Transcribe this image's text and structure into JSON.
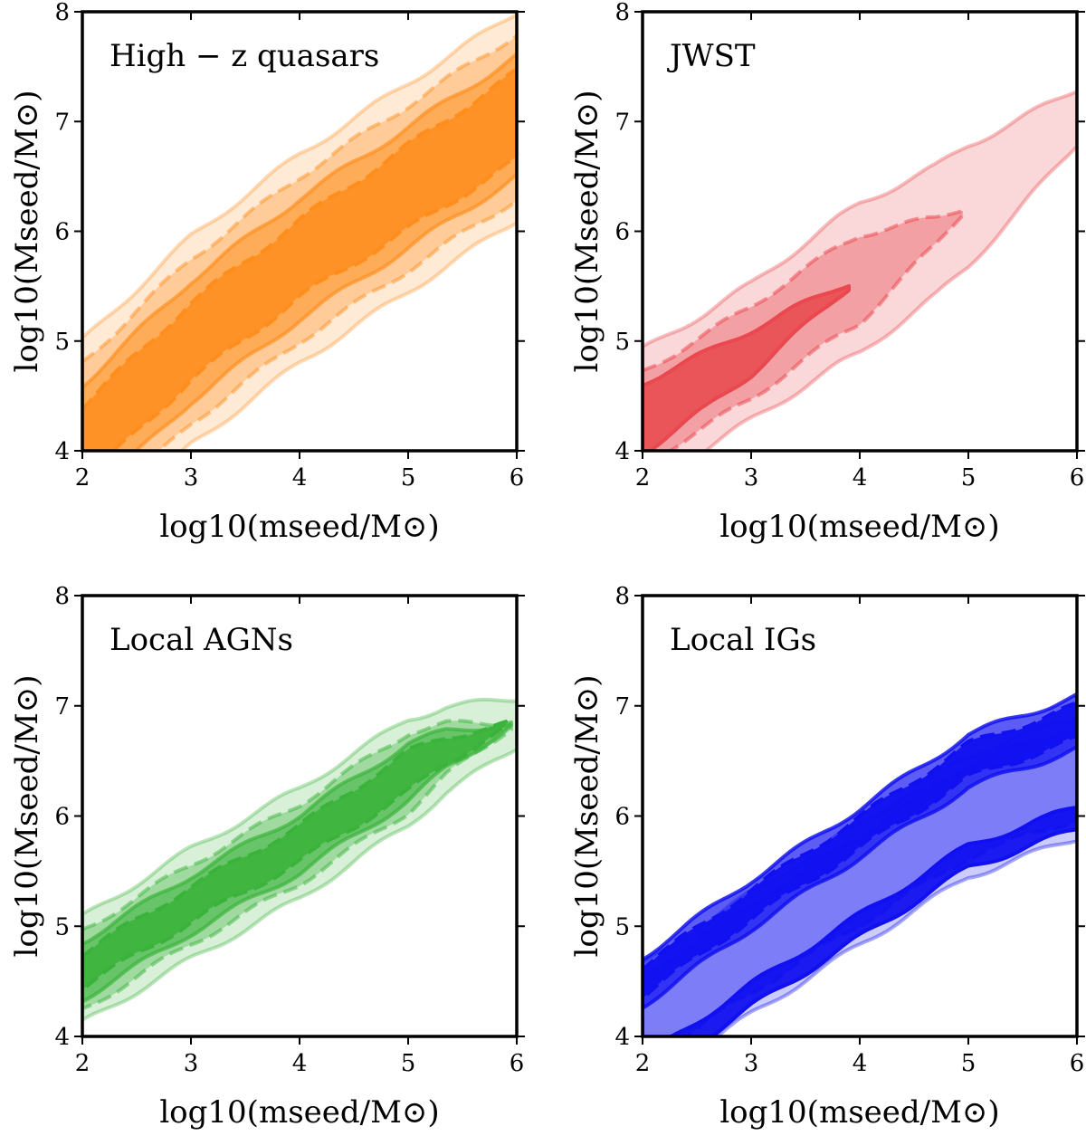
{
  "chart_data": [
    {
      "type": "contour",
      "label": "High − z quasars",
      "color": "#ff8c1a",
      "xlabel": "log10(mseed/M⊙)",
      "ylabel": "log10(Mseed/M⊙)",
      "xlim": [
        2,
        6
      ],
      "ylim": [
        4,
        8
      ],
      "xticks": [
        "2",
        "3",
        "4",
        "5",
        "6"
      ],
      "yticks": [
        "4",
        "5",
        "6",
        "7",
        "8"
      ],
      "levels": [
        {
          "opacity": 0.18,
          "halfwidth": [
            0.95,
            0.95,
            0.95,
            0.95,
            0.95
          ],
          "offset": [
            0,
            0,
            0,
            0,
            0
          ]
        },
        {
          "opacity": 0.32,
          "halfwidth": [
            0.75,
            0.75,
            0.75,
            0.75,
            0.75
          ],
          "offset": [
            0,
            0,
            0,
            0,
            0
          ]
        },
        {
          "opacity": 0.5,
          "halfwidth": [
            0.55,
            0.55,
            0.55,
            0.55,
            0.55
          ],
          "offset": [
            0,
            0,
            0,
            0,
            0
          ]
        },
        {
          "opacity": 0.8,
          "halfwidth": [
            0.35,
            0.35,
            0.35,
            0.38,
            0.4
          ],
          "offset": [
            0,
            0,
            0,
            0,
            0
          ]
        }
      ],
      "ridge": {
        "x": [
          2.0,
          3.0,
          4.0,
          5.0,
          6.0
        ],
        "y": [
          4.05,
          5.0,
          5.75,
          6.4,
          7.05
        ]
      }
    },
    {
      "type": "contour",
      "label": "JWST",
      "color": "#e8484e",
      "xlabel": "log10(mseed/M⊙)",
      "ylabel": "log10(Mseed/M⊙)",
      "xlim": [
        2,
        6
      ],
      "ylim": [
        4,
        8
      ],
      "xticks": [
        "2",
        "3",
        "4",
        "5",
        "6"
      ],
      "yticks": [
        "4",
        "5",
        "6",
        "7",
        "8"
      ],
      "levels": [
        {
          "opacity": 0.22,
          "halfwidth": [
            0.62,
            0.62,
            0.68,
            0.55,
            0.25
          ],
          "offset": [
            0,
            0,
            0,
            0,
            0
          ]
        },
        {
          "opacity": 0.38,
          "halfwidth": [
            0.42,
            0.42,
            0.4,
            0,
            0
          ],
          "offset": [
            0,
            0,
            0,
            0,
            0
          ]
        },
        {
          "opacity": 0.85,
          "halfwidth": [
            0.32,
            0.2,
            0,
            0,
            0
          ],
          "offset": [
            0,
            0,
            0,
            0,
            0
          ]
        }
      ],
      "ridge": {
        "x": [
          2.0,
          2.6,
          3.0,
          3.8,
          4.7,
          5.4,
          6.0
        ],
        "y": [
          4.3,
          4.65,
          4.9,
          5.45,
          6.0,
          6.55,
          7.05
        ]
      }
    },
    {
      "type": "contour",
      "label": "Local AGNs",
      "color": "#3ab33a",
      "xlabel": "log10(mseed/M⊙)",
      "ylabel": "log10(Mseed/M⊙)",
      "xlim": [
        2,
        6
      ],
      "ylim": [
        4,
        8
      ],
      "xticks": [
        "2",
        "3",
        "4",
        "5",
        "6"
      ],
      "yticks": [
        "4",
        "5",
        "6",
        "7",
        "8"
      ],
      "levels": [
        {
          "opacity": 0.2,
          "halfwidth": [
            0.48,
            0.5,
            0.5,
            0.48,
            0.22
          ],
          "offset": [
            0,
            0,
            0,
            0,
            0
          ]
        },
        {
          "opacity": 0.35,
          "halfwidth": [
            0.36,
            0.36,
            0.36,
            0.36,
            0
          ],
          "offset": [
            0,
            0,
            0,
            0,
            0
          ]
        },
        {
          "opacity": 0.55,
          "halfwidth": [
            0.26,
            0.26,
            0.26,
            0.26,
            0
          ],
          "offset": [
            0,
            0,
            0,
            0,
            0
          ]
        },
        {
          "opacity": 0.85,
          "halfwidth": [
            0.15,
            0.16,
            0.16,
            0.18,
            0
          ],
          "offset": [
            0,
            0,
            0,
            0,
            0
          ]
        }
      ],
      "ridge": {
        "x": [
          2.0,
          3.0,
          4.0,
          5.0,
          5.35,
          6.0
        ],
        "y": [
          4.6,
          5.2,
          5.75,
          6.4,
          6.6,
          6.85
        ]
      }
    },
    {
      "type": "contour",
      "label": "Local IGs",
      "color": "#1010f0",
      "xlabel": "log10(mseed/M⊙)",
      "ylabel": "log10(Mseed/M⊙)",
      "xlim": [
        2,
        6
      ],
      "ylim": [
        4,
        8
      ],
      "xticks": [
        "2",
        "3",
        "4",
        "5",
        "6"
      ],
      "yticks": [
        "4",
        "5",
        "6",
        "7",
        "8"
      ],
      "levels": [
        {
          "opacity": 0.22,
          "halfwidth": [
            0.55,
            0.55,
            0.55,
            0.55,
            0.55
          ],
          "offset": [
            -0.35,
            -0.4,
            -0.42,
            -0.45,
            -0.45
          ]
        },
        {
          "opacity": 0.42,
          "halfwidth": [
            0.4,
            0.4,
            0.4,
            0.42,
            0.42
          ],
          "offset": [
            -0.3,
            -0.35,
            -0.38,
            -0.4,
            -0.4
          ]
        },
        {
          "opacity": 0.68,
          "halfwidth": [
            0.22,
            0.22,
            0.22,
            0.24,
            0.24
          ],
          "offset": [
            0.05,
            0.05,
            0.05,
            0.05,
            0.05
          ]
        },
        {
          "opacity": 0.95,
          "halfwidth": [
            0.13,
            0.13,
            0.14,
            0.15,
            0.15
          ],
          "offset": [
            0.05,
            0.05,
            0.05,
            0.05,
            0.05
          ]
        },
        {
          "opacity": 0.95,
          "halfwidth": [
            0.1,
            0.1,
            0.1,
            0.1,
            0.1
          ],
          "offset": [
            -0.75,
            -0.78,
            -0.8,
            -0.82,
            -0.82
          ]
        }
      ],
      "ridge": {
        "x": [
          2.0,
          3.0,
          4.0,
          5.0,
          6.0
        ],
        "y": [
          4.45,
          5.15,
          5.8,
          6.45,
          6.8
        ]
      }
    }
  ]
}
